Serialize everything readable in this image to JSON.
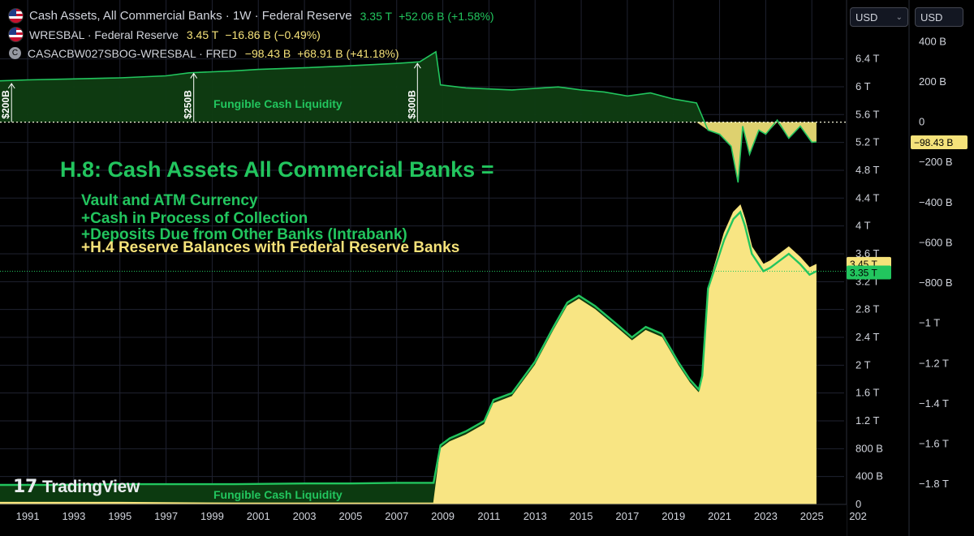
{
  "legend": [
    {
      "name": "Cash Assets, All Commercial Banks · 1W · Federal Reserve",
      "value": "3.35 T",
      "change": "+52.06 B (+1.58%)",
      "color": "#22c55e",
      "icon": "us-flag-icon"
    },
    {
      "name": "WRESBAL · Federal Reserve",
      "value": "3.45 T",
      "change": "−16.86 B (−0.49%)",
      "color": "#f5e27a",
      "icon": "us-flag-icon"
    },
    {
      "name": "CASACBW027SBOG-WRESBAL · FRED",
      "value": "−98.43 B",
      "change": "+68.91 B (+41.18%)",
      "color": "#f5e27a",
      "icon": "c-circle-icon"
    }
  ],
  "currency_selectors": [
    "USD",
    "USD"
  ],
  "chevron_glyph": "⌄",
  "brand": "TradingView",
  "brand_mark": "17",
  "annotations": {
    "headline": "H.8: Cash Assets All Commercial Banks =",
    "lines": [
      "Vault and ATM Currency",
      "+Cash in Process of Collection",
      "+Deposits Due from Other Banks (Intrabank)",
      "+H.4 Reserve Balances with Federal Reserve Banks"
    ],
    "fungible_top": "Fungible Cash Liquidity",
    "fungible_bottom": "Fungible Cash Liquidity",
    "markers": [
      "$200B",
      "$250B",
      "$300B"
    ]
  },
  "chart_data": {
    "type": "area",
    "x_axis": {
      "type": "year",
      "range": [
        1989.8,
        2026.4
      ],
      "ticks": [
        "1991",
        "1993",
        "1995",
        "1997",
        "1999",
        "2001",
        "2003",
        "2005",
        "2007",
        "2009",
        "2011",
        "2013",
        "2015",
        "2017",
        "2019",
        "2021",
        "2023",
        "2025",
        "202"
      ]
    },
    "y_axis_left": {
      "unit": "T",
      "range": [
        0,
        6.85
      ],
      "ticks": [
        "0",
        "400 B",
        "800 B",
        "1.2 T",
        "1.6 T",
        "2 T",
        "2.4 T",
        "2.8 T",
        "3.2 T",
        "3.6 T",
        "4 T",
        "4.4 T",
        "4.8 T",
        "5.2 T",
        "5.6 T",
        "6 T",
        "6.4 T"
      ],
      "badges": [
        {
          "label": "3.45 T",
          "color": "#f5e27a"
        },
        {
          "label": "3.35 T",
          "color": "#22c55e"
        }
      ]
    },
    "y_axis_right": {
      "unit": "B",
      "range": [
        -1900,
        470
      ],
      "ticks": [
        "400 B",
        "200 B",
        "0",
        "−200 B",
        "−400 B",
        "−600 B",
        "−800 B",
        "−1 T",
        "−1.2 T",
        "−1.4 T",
        "−1.6 T",
        "−1.8 T"
      ],
      "badges": [
        {
          "label": "−98.43 B",
          "color": "#f5e27a"
        }
      ]
    },
    "series": [
      {
        "name": "Cash Assets, All Commercial Banks",
        "color": "#22c55e",
        "axis": "left",
        "x": [
          1989.8,
          1992,
          1995,
          1998,
          2000,
          2003,
          2005,
          2007,
          2008.2,
          2008.6,
          2008.9,
          2009.3,
          2010,
          2010.8,
          2011.2,
          2012,
          2013,
          2013.8,
          2014.4,
          2014.9,
          2015.6,
          2016.5,
          2017.2,
          2017.8,
          2018.5,
          2019.2,
          2019.7,
          2020.1,
          2020.25,
          2020.5,
          2020.8,
          2021.2,
          2021.6,
          2021.9,
          2022.1,
          2022.4,
          2022.7,
          2022.9,
          2023.2,
          2023.6,
          2024,
          2024.5,
          2024.9,
          2025.2
        ],
        "values": [
          0.28,
          0.28,
          0.29,
          0.29,
          0.29,
          0.3,
          0.3,
          0.31,
          0.31,
          0.31,
          0.85,
          0.95,
          1.05,
          1.2,
          1.5,
          1.6,
          2.05,
          2.55,
          2.9,
          3.0,
          2.85,
          2.6,
          2.4,
          2.55,
          2.45,
          2.05,
          1.8,
          1.65,
          1.85,
          3.1,
          3.4,
          3.8,
          4.1,
          4.2,
          4.0,
          3.6,
          3.45,
          3.35,
          3.4,
          3.5,
          3.6,
          3.45,
          3.3,
          3.35
        ]
      },
      {
        "name": "WRESBAL",
        "color": "#f5e27a",
        "axis": "left",
        "x": [
          1989.8,
          1995,
          2000,
          2005,
          2008.6,
          2008.9,
          2009.3,
          2010,
          2010.8,
          2011.2,
          2012,
          2013,
          2013.8,
          2014.4,
          2014.9,
          2015.6,
          2016.5,
          2017.2,
          2017.8,
          2018.5,
          2019.2,
          2019.7,
          2020.1,
          2020.25,
          2020.5,
          2020.8,
          2021.2,
          2021.6,
          2021.9,
          2022.1,
          2022.4,
          2022.7,
          2022.9,
          2023.2,
          2023.6,
          2024,
          2024.5,
          2024.9,
          2025.2
        ],
        "values": [
          0.03,
          0.03,
          0.02,
          0.02,
          0.02,
          0.8,
          0.9,
          1.0,
          1.15,
          1.45,
          1.55,
          2.0,
          2.5,
          2.85,
          2.95,
          2.8,
          2.55,
          2.35,
          2.5,
          2.4,
          2.0,
          1.75,
          1.6,
          1.8,
          3.1,
          3.45,
          3.9,
          4.2,
          4.3,
          4.1,
          3.7,
          3.55,
          3.45,
          3.5,
          3.6,
          3.7,
          3.55,
          3.4,
          3.45
        ]
      },
      {
        "name": "CASACBW027SBOG-WRESBAL",
        "color": "#22c55e",
        "negative_color": "#f5e27a",
        "axis": "right",
        "x": [
          1989.8,
          1991,
          1993,
          1995,
          1997,
          1998,
          2000,
          2001,
          2003,
          2005,
          2007,
          2008,
          2008.7,
          2008.9,
          2010,
          2012,
          2014,
          2015,
          2016,
          2017,
          2018,
          2019,
          2020,
          2020.5,
          2021,
          2021.5,
          2021.8,
          2022,
          2022.3,
          2022.7,
          2023,
          2023.5,
          2024,
          2024.5,
          2025,
          2025.2
        ],
        "values": [
          205,
          210,
          215,
          220,
          230,
          245,
          255,
          262,
          270,
          280,
          292,
          300,
          350,
          185,
          170,
          160,
          175,
          160,
          150,
          130,
          145,
          115,
          95,
          -40,
          -60,
          -120,
          -300,
          -20,
          -160,
          -40,
          -60,
          10,
          -80,
          -20,
          -100,
          -98.43
        ]
      }
    ]
  }
}
